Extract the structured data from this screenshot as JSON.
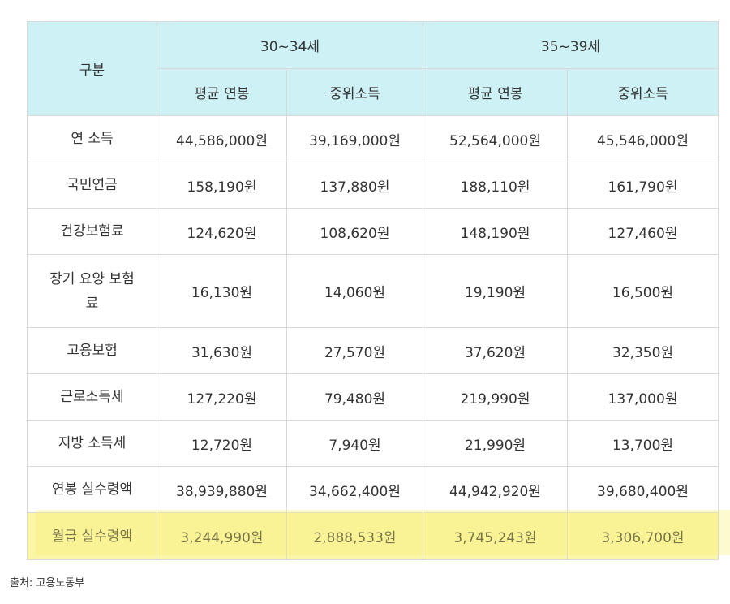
{
  "table": {
    "corner_label": "구분",
    "groups": [
      "30~34세",
      "35~39세"
    ],
    "subheaders": [
      "평균 연봉",
      "중위소득",
      "평균 연봉",
      "중위소득"
    ],
    "rows": [
      {
        "label": "연 소득",
        "values": [
          "44,586,000원",
          "39,169,000원",
          "52,564,000원",
          "45,546,000원"
        ]
      },
      {
        "label": "국민연금",
        "values": [
          "158,190원",
          "137,880원",
          "188,110원",
          "161,790원"
        ]
      },
      {
        "label": "건강보험료",
        "values": [
          "124,620원",
          "108,620원",
          "148,190원",
          "127,460원"
        ]
      },
      {
        "label": "장기 요양 보험료",
        "values": [
          "16,130원",
          "14,060원",
          "19,190원",
          "16,500원"
        ]
      },
      {
        "label": "고용보험",
        "values": [
          "31,630원",
          "27,570원",
          "37,620원",
          "32,350원"
        ]
      },
      {
        "label": "근로소득세",
        "values": [
          "127,220원",
          "79,480원",
          "219,990원",
          "137,000원"
        ]
      },
      {
        "label": "지방 소득세",
        "values": [
          "12,720원",
          "7,940원",
          "21,990원",
          "13,700원"
        ]
      },
      {
        "label": "연봉 실수령액",
        "values": [
          "38,939,880원",
          "34,662,400원",
          "44,942,920원",
          "39,680,400원"
        ]
      },
      {
        "label": "월급 실수령액",
        "values": [
          "3,244,990원",
          "2,888,533원",
          "3,745,243원",
          "3,306,700원"
        ]
      }
    ]
  },
  "highlight_color": "#fbf5a6",
  "header_color": "#cdf1f5",
  "source": "출처: 고용노동부"
}
